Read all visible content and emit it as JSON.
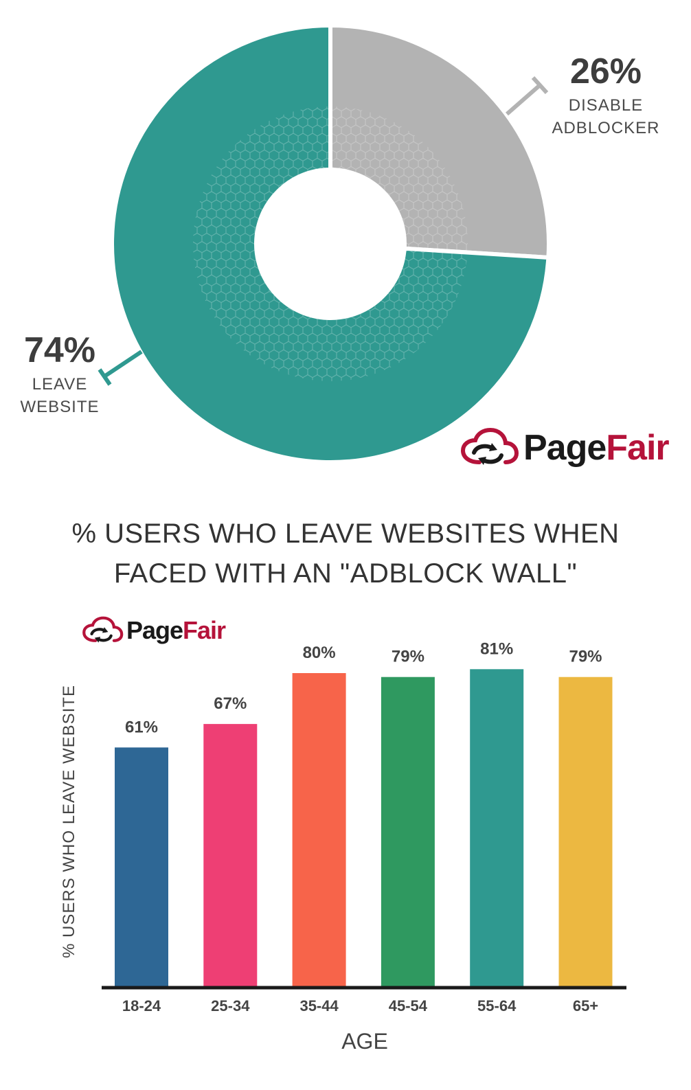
{
  "brand": {
    "part1": "Page",
    "part2": "Fair"
  },
  "colors": {
    "teal": "#2f9990",
    "gray": "#b3b3b3",
    "brand_red": "#b5133a",
    "text": "#3d3d3d",
    "axis": "#1a1a1a"
  },
  "chart_data": [
    {
      "type": "pie",
      "donut": true,
      "title": "",
      "slices": [
        {
          "name": "DISABLE ADBLOCKER",
          "value": 26,
          "label": "26%",
          "line1": "DISABLE",
          "line2": "ADBLOCKER",
          "color": "#b3b3b3"
        },
        {
          "name": "LEAVE WEBSITE",
          "value": 74,
          "label": "74%",
          "line1": "LEAVE",
          "line2": "WEBSITE",
          "color": "#2f9990"
        }
      ]
    },
    {
      "type": "bar",
      "title_lines": [
        "% USERS WHO LEAVE WEBSITES WHEN",
        "FACED WITH AN \"ADBLOCK WALL\""
      ],
      "categories": [
        "18-24",
        "25-34",
        "35-44",
        "45-54",
        "55-64",
        "65+"
      ],
      "values": [
        61,
        67,
        80,
        79,
        81,
        79
      ],
      "value_labels": [
        "61%",
        "67%",
        "80%",
        "79%",
        "81%",
        "79%"
      ],
      "colors": [
        "#2e6795",
        "#ee3f74",
        "#f7644a",
        "#2f9960",
        "#2f9990",
        "#ecb841"
      ],
      "xlabel": "AGE",
      "ylabel": "% USERS WHO LEAVE WEBSITE",
      "ylim": [
        0,
        100
      ],
      "grid": false,
      "legend": "none"
    }
  ]
}
